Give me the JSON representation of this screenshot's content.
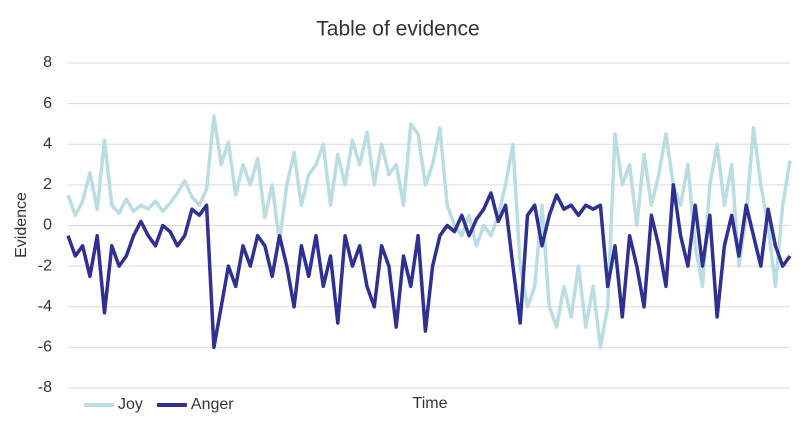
{
  "chart_data": {
    "type": "line",
    "title": "Table of evidence",
    "x_label": "Time",
    "y_label": "Evidence",
    "categories": [
      null,
      null,
      null,
      null,
      null,
      null,
      null,
      null,
      null,
      null,
      null,
      null,
      null,
      null,
      null,
      null,
      null,
      null,
      null,
      null,
      null,
      null,
      null,
      null,
      null,
      null,
      null,
      null,
      null,
      null,
      null,
      null,
      null,
      null,
      null,
      null,
      null,
      null,
      null,
      null,
      null,
      null,
      null,
      null,
      null,
      null,
      null,
      null,
      null,
      null,
      null,
      null,
      null,
      null,
      null,
      null,
      null,
      null,
      null,
      null,
      null,
      null,
      null,
      null,
      null,
      null,
      null,
      null,
      null,
      null,
      null,
      null,
      null,
      null,
      null,
      null,
      null,
      null,
      null,
      null,
      null,
      null,
      null,
      null,
      null,
      null,
      null,
      null,
      null,
      null,
      null,
      null,
      null,
      null,
      null,
      null,
      null,
      null,
      null,
      null
    ],
    "series": [
      {
        "name": "Joy",
        "color": "#b9dde2",
        "values": [
          1.5,
          0.5,
          1.2,
          2.6,
          0.8,
          4.2,
          1,
          0.6,
          1.3,
          0.7,
          1,
          0.8,
          1.2,
          0.7,
          1.1,
          1.6,
          2.2,
          1.4,
          1,
          1.8,
          5.4,
          3,
          4.1,
          1.5,
          3,
          2,
          3.3,
          0.4,
          2,
          -0.8,
          2,
          3.6,
          1,
          2.5,
          3,
          4,
          1,
          3.5,
          2,
          4.2,
          3,
          4.6,
          2,
          4,
          2.5,
          3,
          1,
          5,
          4.5,
          2,
          3,
          4.8,
          1,
          0,
          -0.5,
          0.5,
          -1,
          0,
          -0.5,
          0.5,
          2,
          4,
          -2,
          -4,
          -3,
          1,
          -4,
          -5,
          -3,
          -4.5,
          -2,
          -5,
          -3,
          -6,
          -4,
          4.5,
          2,
          3,
          0,
          3.5,
          1,
          2.5,
          4.5,
          2,
          1,
          3,
          -1,
          -3,
          2,
          4,
          1,
          3,
          -2,
          0.5,
          4.8,
          2,
          0,
          -3,
          1,
          3.2
        ]
      },
      {
        "name": "Anger",
        "color": "#2e3192",
        "values": [
          -0.5,
          -1.5,
          -1,
          -2.5,
          -0.5,
          -4.3,
          -1,
          -2,
          -1.5,
          -0.5,
          0.2,
          -0.5,
          -1,
          0,
          -0.3,
          -1,
          -0.5,
          0.8,
          0.5,
          1,
          -6,
          -4,
          -2,
          -3,
          -1,
          -2,
          -0.5,
          -1,
          -2.5,
          -0.5,
          -2,
          -4,
          -1,
          -2.5,
          -0.5,
          -3,
          -1.5,
          -4.8,
          -0.5,
          -2,
          -1,
          -3,
          -4,
          -1,
          -2,
          -5,
          -1.5,
          -3,
          -0.5,
          -5.2,
          -2,
          -0.5,
          0,
          -0.3,
          0.5,
          -0.5,
          0.3,
          0.8,
          1.6,
          0.2,
          1,
          -2,
          -4.8,
          0.5,
          1,
          -1,
          0.5,
          1.5,
          0.8,
          1,
          0.5,
          1,
          0.8,
          1,
          -3,
          -1,
          -4.5,
          -0.5,
          -2,
          -4,
          0.5,
          -1,
          -3,
          2,
          -0.5,
          -2,
          1,
          -2,
          0.5,
          -4.5,
          -1,
          0.5,
          -1.5,
          1,
          -0.5,
          -2,
          0.8,
          -1,
          -2,
          -1.5
        ]
      }
    ],
    "ylim": [
      -8,
      8
    ],
    "yticks": [
      -8,
      -6,
      -4,
      -2,
      0,
      2,
      4,
      6,
      8
    ],
    "grid": true,
    "legend": "bottom-left"
  }
}
